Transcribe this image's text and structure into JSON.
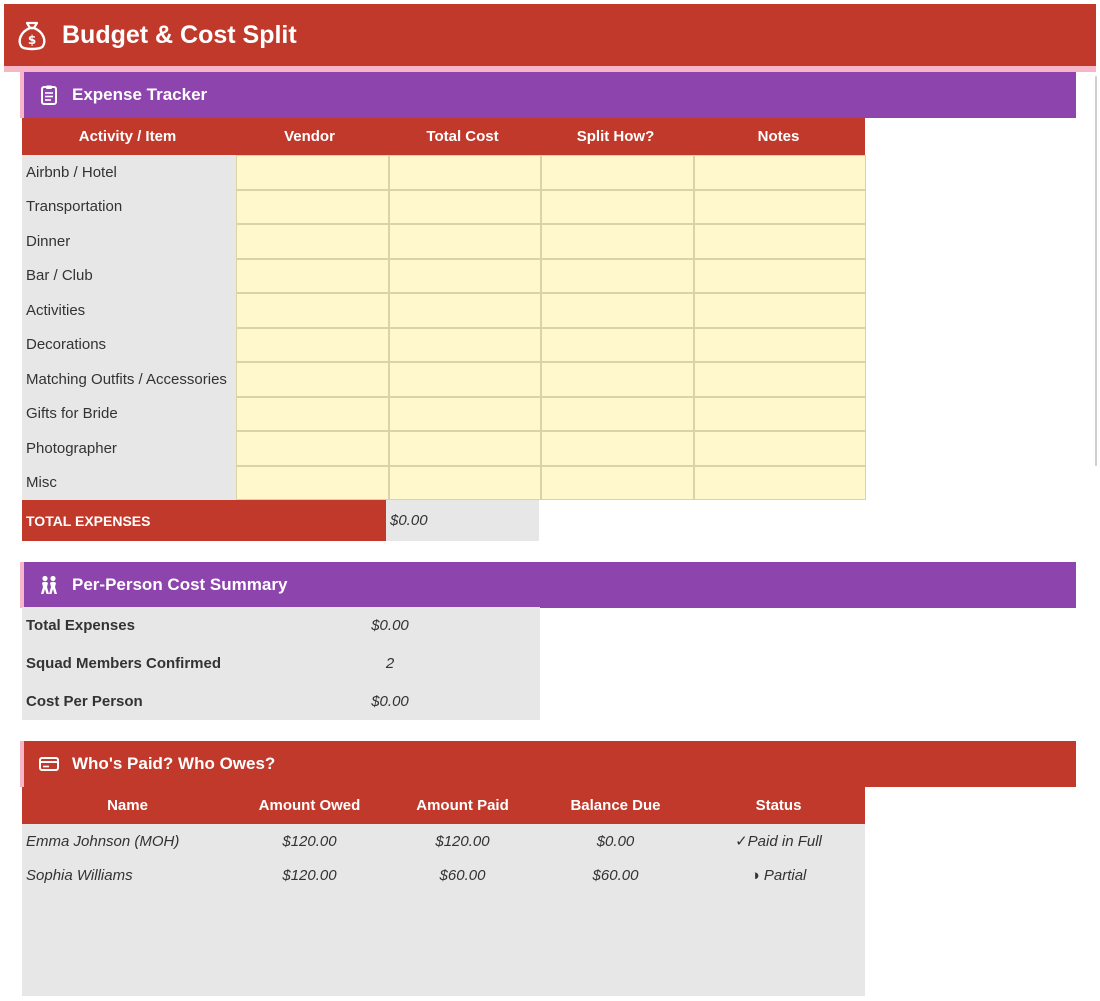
{
  "app": {
    "title": "Budget & Cost Split",
    "icon": "money-bag-icon"
  },
  "sections": {
    "expense": {
      "title": "Expense Tracker",
      "icon": "clipboard-icon"
    },
    "summary": {
      "title": "Per-Person Cost Summary",
      "icon": "people-icon"
    },
    "payments": {
      "title": "Who's Paid? Who Owes?",
      "icon": "credit-card-icon"
    }
  },
  "expense_table": {
    "columns": [
      "Activity / Item",
      "Vendor",
      "Total Cost",
      "Split How?",
      "Notes"
    ],
    "rows": [
      {
        "item": "Airbnb / Hotel",
        "vendor": "",
        "total": "",
        "split": "",
        "notes": ""
      },
      {
        "item": "Transportation",
        "vendor": "",
        "total": "",
        "split": "",
        "notes": ""
      },
      {
        "item": "Dinner",
        "vendor": "",
        "total": "",
        "split": "",
        "notes": ""
      },
      {
        "item": "Bar / Club",
        "vendor": "",
        "total": "",
        "split": "",
        "notes": ""
      },
      {
        "item": "Activities",
        "vendor": "",
        "total": "",
        "split": "",
        "notes": ""
      },
      {
        "item": "Decorations",
        "vendor": "",
        "total": "",
        "split": "",
        "notes": ""
      },
      {
        "item": "Matching Outfits / Accessories",
        "vendor": "",
        "total": "",
        "split": "",
        "notes": ""
      },
      {
        "item": "Gifts for Bride",
        "vendor": "",
        "total": "",
        "split": "",
        "notes": ""
      },
      {
        "item": "Photographer",
        "vendor": "",
        "total": "",
        "split": "",
        "notes": ""
      },
      {
        "item": "Misc",
        "vendor": "",
        "total": "",
        "split": "",
        "notes": ""
      }
    ],
    "total_label": "TOTAL EXPENSES",
    "total_value": "$0.00"
  },
  "summary": {
    "rows": [
      {
        "label": "Total Expenses",
        "value": "$0.00"
      },
      {
        "label": "Squad Members Confirmed",
        "value": "2"
      },
      {
        "label": "Cost Per Person",
        "value": "$0.00"
      }
    ]
  },
  "payments_table": {
    "columns": [
      "Name",
      "Amount Owed",
      "Amount Paid",
      "Balance Due",
      "Status"
    ],
    "rows": [
      {
        "name": "Emma Johnson (MOH)",
        "owed": "$120.00",
        "paid": "$120.00",
        "balance": "$0.00",
        "status": "✓Paid in Full"
      },
      {
        "name": "Sophia Williams",
        "owed": "$120.00",
        "paid": "$60.00",
        "balance": "$60.00",
        "status": "◑ Partial"
      }
    ]
  },
  "colors": {
    "red": "#c0392b",
    "purple": "#8e44ad",
    "pink": "#f7b6c7",
    "cell_yellow": "#fff8cc",
    "gray": "#e7e7e7"
  }
}
